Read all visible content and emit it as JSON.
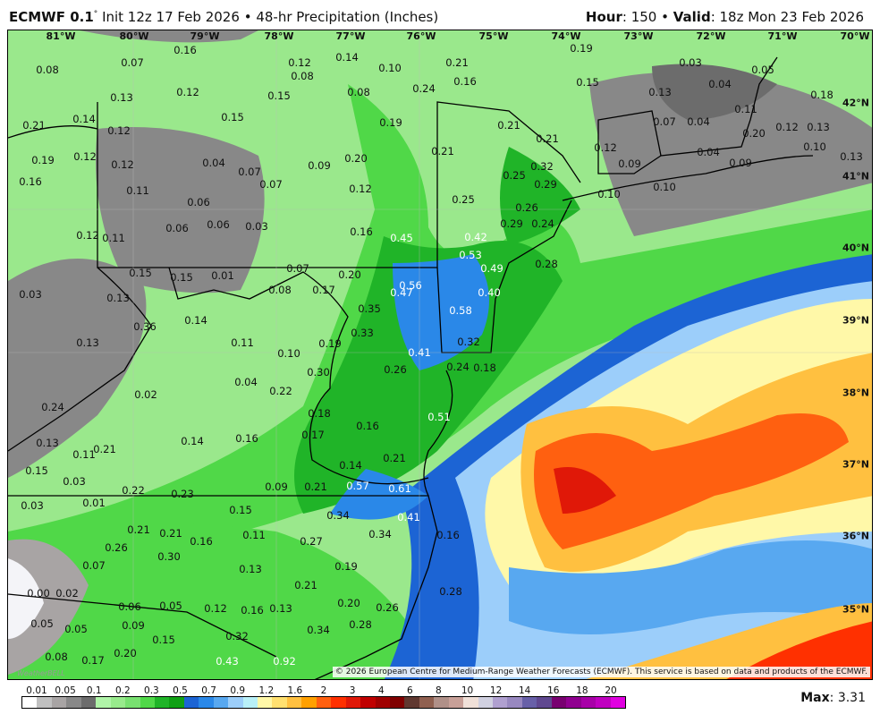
{
  "header": {
    "model": "ECMWF 0.1",
    "degree": "°",
    "init": "Init 12z 17 Feb 2026",
    "sep": "•",
    "product": "48-hr Precipitation (Inches)",
    "hour_label": "Hour",
    "hour": "150",
    "valid_label": "Valid",
    "valid": "18z Mon 23 Feb 2026"
  },
  "longitudes": [
    "81°W",
    "80°W",
    "79°W",
    "78°W",
    "77°W",
    "76°W",
    "75°W",
    "74°W",
    "73°W",
    "72°W",
    "71°W",
    "70°W"
  ],
  "latitudes": [
    "42°N",
    "41°N",
    "40°N",
    "39°N",
    "38°N",
    "37°N",
    "36°N",
    "35°N"
  ],
  "values": [
    "0.07",
    "0.16",
    "0.08",
    "0.12",
    "0.14",
    "0.08",
    "0.10",
    "0.21",
    "0.16",
    "0.19",
    "0.03",
    "0.05",
    "0.04",
    "0.15",
    "0.13",
    "0.08",
    "0.24",
    "0.12",
    "0.15",
    "0.13",
    "0.15",
    "0.14",
    "0.21",
    "0.12",
    "0.19",
    "0.21",
    "0.21",
    "0.07",
    "0.04",
    "0.11",
    "0.18",
    "0.12",
    "0.13",
    "0.20",
    "0.19",
    "0.12",
    "0.12",
    "0.04",
    "0.07",
    "0.09",
    "0.20",
    "0.21",
    "0.12",
    "0.04",
    "0.10",
    "0.13",
    "0.09",
    "0.09",
    "0.32",
    "0.25",
    "0.29",
    "0.16",
    "0.11",
    "0.07",
    "0.12",
    "0.25",
    "0.10",
    "0.10",
    "0.06",
    "0.26",
    "0.29",
    "0.24",
    "0.12",
    "0.11",
    "0.06",
    "0.06",
    "0.03",
    "0.16",
    "0.45",
    "0.42",
    "0.53",
    "0.49",
    "0.28",
    "0.15",
    "0.15",
    "0.01",
    "0.07",
    "0.20",
    "0.56",
    "0.40",
    "0.03",
    "0.13",
    "0.08",
    "0.17",
    "0.47",
    "0.35",
    "0.58",
    "0.36",
    "0.14",
    "0.33",
    "0.13",
    "0.11",
    "0.19",
    "0.32",
    "0.41",
    "0.10",
    "0.30",
    "0.26",
    "0.24",
    "0.18",
    "0.04",
    "0.22",
    "0.02",
    "0.24",
    "0.18",
    "0.51",
    "0.17",
    "0.16",
    "0.13",
    "0.21",
    "0.11",
    "0.14",
    "0.16",
    "0.15",
    "0.14",
    "0.21",
    "0.03",
    "0.22",
    "0.23",
    "0.09",
    "0.21",
    "0.57",
    "0.61",
    "0.03",
    "0.01",
    "0.15",
    "0.34",
    "0.41",
    "0.21",
    "0.21",
    "0.11",
    "0.16",
    "0.27",
    "0.34",
    "0.16",
    "0.26",
    "0.30",
    "0.07",
    "0.13",
    "0.19",
    "0.21",
    "0.28",
    "0.00",
    "0.02",
    "0.06",
    "0.05",
    "0.12",
    "0.16",
    "0.13",
    "0.20",
    "0.26",
    "0.05",
    "0.05",
    "0.09",
    "0.15",
    "0.32",
    "0.34",
    "0.28",
    "0.20",
    "0.17",
    "0.43",
    "0.92",
    "0.08"
  ],
  "credit": "© 2026 European Centre for Medium-Range Weather Forecasts (ECMWF). This service is based on data and products of the ECMWF.",
  "logo": "WeatherBELL",
  "legend": {
    "ticks": [
      "0.01",
      "0.05",
      "0.1",
      "0.2",
      "0.3",
      "0.5",
      "0.7",
      "0.9",
      "1.2",
      "1.6",
      "2",
      "3",
      "4",
      "6",
      "8",
      "10",
      "12",
      "14",
      "16",
      "18",
      "20"
    ],
    "colors": [
      "#ffffff",
      "#c0c0c0",
      "#a8a4a4",
      "#888888",
      "#6c6c6c",
      "#b0f4a8",
      "#98ea8c",
      "#78e070",
      "#50d848",
      "#20b428",
      "#10a014",
      "#1c64d4",
      "#2a88e8",
      "#58a8f0",
      "#9ccefa",
      "#b8f0f8",
      "#fff8a8",
      "#ffe070",
      "#ffc040",
      "#ffa000",
      "#ff6010",
      "#ff3000",
      "#e01808",
      "#c00000",
      "#a00000",
      "#800000",
      "#603830",
      "#906050",
      "#b09088",
      "#c8a098",
      "#f0e0d8",
      "#d0d0e0",
      "#b0a0d0",
      "#9888c0",
      "#6860a8",
      "#604890",
      "#780070",
      "#900090",
      "#a800a8",
      "#c000c0",
      "#e000e0"
    ]
  },
  "max": {
    "label": "Max",
    "value": "3.31"
  }
}
